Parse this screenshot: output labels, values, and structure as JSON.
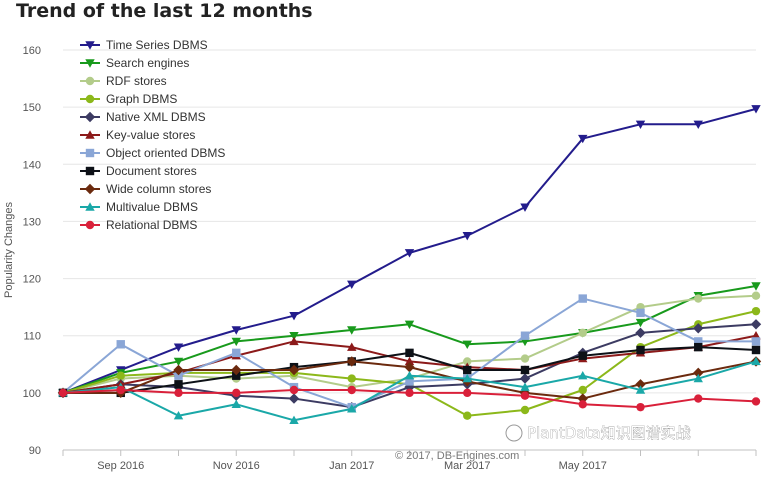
{
  "chart_data": {
    "type": "line",
    "title": "Trend of the last 12 months",
    "xlabel": "",
    "ylabel": "Popularity Changes",
    "ylim": [
      90,
      160
    ],
    "yticks": [
      90,
      100,
      110,
      120,
      130,
      140,
      150,
      160
    ],
    "x": [
      0,
      1,
      2,
      3,
      4,
      5,
      6,
      7,
      8,
      9,
      10,
      11,
      12
    ],
    "xticks": [
      {
        "x": 1,
        "label": "Sep 2016"
      },
      {
        "x": 3,
        "label": "Nov 2016"
      },
      {
        "x": 5,
        "label": "Jan 2017"
      },
      {
        "x": 7,
        "label": "Mar 2017"
      },
      {
        "x": 9,
        "label": "May 2017"
      }
    ],
    "series": [
      {
        "name": "Time Series DBMS",
        "color": "#231c8c",
        "marker": "triangle-down",
        "values": [
          100,
          104,
          108,
          111,
          113.5,
          119,
          124.5,
          127.5,
          132.5,
          144.5,
          147,
          147,
          149.7
        ]
      },
      {
        "name": "Search engines",
        "color": "#189a1c",
        "marker": "triangle-down",
        "values": [
          100,
          103.5,
          105.5,
          109,
          110,
          111,
          112,
          108.5,
          109,
          110.5,
          112.3,
          117,
          118.7
        ]
      },
      {
        "name": "RDF stores",
        "color": "#b3cc8a",
        "marker": "circle",
        "values": [
          100,
          102.5,
          103,
          102.5,
          103,
          101,
          102.5,
          105.5,
          106,
          110.5,
          115,
          116.5,
          117
        ]
      },
      {
        "name": "Graph DBMS",
        "color": "#8cb81a",
        "marker": "circle",
        "values": [
          100,
          103,
          103.5,
          103.5,
          103.5,
          102.5,
          101.5,
          96,
          97,
          100.5,
          108,
          112,
          114.3
        ]
      },
      {
        "name": "Native XML DBMS",
        "color": "#3c3b62",
        "marker": "diamond",
        "values": [
          100,
          101.5,
          101,
          99.5,
          99,
          97.5,
          101,
          101.5,
          102.5,
          107,
          110.5,
          111.3,
          112
        ]
      },
      {
        "name": "Key-value stores",
        "color": "#8c1a1a",
        "marker": "triangle-up",
        "values": [
          100,
          101.5,
          103.5,
          106.5,
          109,
          108,
          105.5,
          104.5,
          104,
          106,
          107,
          108,
          110
        ]
      },
      {
        "name": "Object oriented DBMS",
        "color": "#8aa6d6",
        "marker": "square",
        "values": [
          100,
          108.5,
          103,
          107,
          101,
          97.5,
          102,
          102.5,
          110,
          116.5,
          114,
          109,
          109
        ]
      },
      {
        "name": "Document stores",
        "color": "#0d1117",
        "marker": "square",
        "values": [
          100,
          100,
          101.5,
          103,
          104.5,
          105.5,
          107,
          104,
          104,
          106.5,
          107.5,
          108,
          107.5
        ]
      },
      {
        "name": "Wide column stores",
        "color": "#6b2a0e",
        "marker": "diamond",
        "values": [
          100,
          100,
          104,
          104,
          104,
          105.5,
          104.5,
          102,
          100,
          99,
          101.5,
          103.5,
          105.5
        ]
      },
      {
        "name": "Multivalue DBMS",
        "color": "#1aa8a8",
        "marker": "triangle-up",
        "values": [
          100,
          101,
          96,
          98,
          95.2,
          97.2,
          103,
          102.5,
          101,
          103,
          100.5,
          102.5,
          105.5
        ]
      },
      {
        "name": "Relational DBMS",
        "color": "#d9203a",
        "marker": "circle",
        "values": [
          100,
          100.5,
          100,
          100,
          100.5,
          100.5,
          100,
          100,
          99.5,
          98,
          97.5,
          99,
          98.5
        ]
      }
    ],
    "legend": "top-left",
    "grid": true
  },
  "credit": "© 2017, DB-Engines.com",
  "watermark": "PlantData知识图谱实战"
}
